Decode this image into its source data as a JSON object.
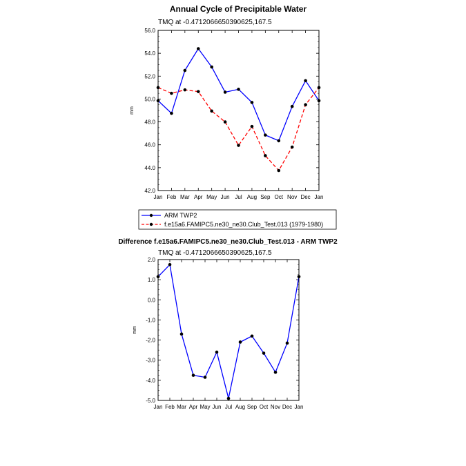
{
  "chart_data": [
    {
      "type": "line",
      "title": "Annual Cycle of Precipitable Water",
      "subtitle": "TMQ at -0.4712066650390625,167.5",
      "ylabel": "mm",
      "xlabel": "",
      "categories": [
        "Jan",
        "Feb",
        "Mar",
        "Apr",
        "May",
        "Jun",
        "Jul",
        "Aug",
        "Sep",
        "Oct",
        "Nov",
        "Dec",
        "Jan"
      ],
      "ylim": [
        42.0,
        56.0
      ],
      "yticks": [
        "42.0",
        "44.0",
        "46.0",
        "48.0",
        "50.0",
        "52.0",
        "54.0",
        "56.0"
      ],
      "series": [
        {
          "name": "ARM TWP2",
          "color": "#0000ff",
          "style": "solid",
          "values": [
            49.85,
            48.75,
            52.5,
            54.4,
            52.8,
            50.6,
            50.85,
            49.7,
            46.85,
            46.35,
            49.35,
            51.6,
            49.85
          ]
        },
        {
          "name": "f.e15a6.FAMIPC5.ne30_ne30.Club_Test.013 (1979-1980)",
          "color": "#ff0000",
          "style": "dashed",
          "values": [
            51.0,
            50.5,
            50.8,
            50.65,
            48.95,
            48.0,
            45.95,
            47.6,
            45.05,
            43.75,
            45.8,
            49.5,
            51.0
          ]
        }
      ]
    },
    {
      "type": "line",
      "title": "Difference f.e15a6.FAMIPC5.ne30_ne30.Club_Test.013 - ARM TWP2",
      "subtitle": "TMQ at -0.4712066650390625,167.5",
      "ylabel": "mm",
      "xlabel": "",
      "categories": [
        "Jan",
        "Feb",
        "Mar",
        "Apr",
        "May",
        "Jun",
        "Jul",
        "Aug",
        "Sep",
        "Oct",
        "Nov",
        "Dec",
        "Jan"
      ],
      "ylim": [
        -5.0,
        2.0
      ],
      "yticks": [
        "-5.0",
        "-4.0",
        "-3.0",
        "-2.0",
        "-1.0",
        "0.0",
        "1.0",
        "2.0"
      ],
      "series": [
        {
          "name": "Difference",
          "color": "#0000ff",
          "style": "solid",
          "values": [
            1.15,
            1.75,
            -1.7,
            -3.75,
            -3.85,
            -2.6,
            -4.9,
            -2.1,
            -1.8,
            -2.65,
            -3.6,
            -2.15,
            1.15
          ]
        }
      ]
    }
  ]
}
